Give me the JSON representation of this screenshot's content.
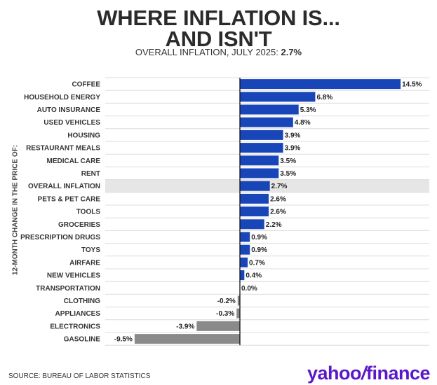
{
  "header": {
    "title_line1": "WHERE INFLATION IS...",
    "title_line2": "AND ISN'T",
    "subtitle_prefix": "OVERALL INFLATION, JULY 2025: ",
    "subtitle_value": "2.7%"
  },
  "footer": {
    "source": "SOURCE: BUREAU OF LABOR STATISTICS",
    "logo_text": "yahoo",
    "logo_slash": "/",
    "logo_suffix": "finance"
  },
  "colors": {
    "positive": "#1846b8",
    "negative": "#8a8a8a",
    "highlight_row": "#e6e6e6",
    "grid": "#dcdcdc",
    "zero_line": "#111111",
    "logo": "#5b18c9"
  },
  "chart_data": {
    "type": "bar",
    "orientation": "horizontal",
    "ylabel": "12-MONTH CHANGE IN THE PRICE OF:",
    "highlight_category": "OVERALL INFLATION",
    "grid": true,
    "categories": [
      "COFFEE",
      "HOUSEHOLD ENERGY",
      "AUTO INSURANCE",
      "USED VEHICLES",
      "HOUSING",
      "RESTAURANT MEALS",
      "MEDICAL CARE",
      "RENT",
      "OVERALL INFLATION",
      "PETS & PET CARE",
      "TOOLS",
      "GROCERIES",
      "PRESCRIPTION DRUGS",
      "TOYS",
      "AIRFARE",
      "NEW VEHICLES",
      "TRANSPORTATION",
      "CLOTHING",
      "APPLIANCES",
      "ELECTRONICS",
      "GASOLINE"
    ],
    "values": [
      14.5,
      6.8,
      5.3,
      4.8,
      3.9,
      3.9,
      3.5,
      3.5,
      2.7,
      2.6,
      2.6,
      2.2,
      0.9,
      0.9,
      0.7,
      0.4,
      0.0,
      -0.2,
      -0.3,
      -3.9,
      -9.5
    ],
    "value_labels": [
      "14.5%",
      "6.8%",
      "5.3%",
      "4.8%",
      "3.9%",
      "3.9%",
      "3.5%",
      "3.5%",
      "2.7%",
      "2.6%",
      "2.6%",
      "2.2%",
      "0.9%",
      "0.9%",
      "0.7%",
      "0.4%",
      "0.0%",
      "-0.2%",
      "-0.3%",
      "-3.9%",
      "-9.5%"
    ]
  }
}
